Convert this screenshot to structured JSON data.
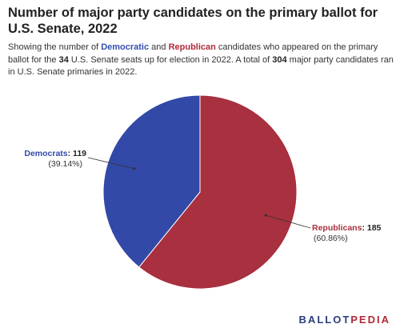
{
  "title": "Number of major party candidates on the primary ballot for U.S. Senate, 2022",
  "subtitle": {
    "part1": "Showing the number of ",
    "dem_word": "Democratic",
    "part2": " and ",
    "rep_word": "Republican",
    "part3": " candidates who appeared on the primary ballot for the ",
    "seats": "34",
    "part4": " U.S. Senate seats up for election in 2022. A total of ",
    "total": "304",
    "part5": " major party candidates ran in U.S. Senate primaries in 2022."
  },
  "logo": {
    "part1": "BALLOT",
    "part2": "PEDIA"
  },
  "chart_data": {
    "type": "pie",
    "title": "Number of major party candidates on the primary ballot for U.S. Senate, 2022",
    "slices": [
      {
        "name": "Republicans",
        "value": 185,
        "percent_label": "(60.86%)",
        "color": "#a8303f"
      },
      {
        "name": "Democrats",
        "value": 119,
        "percent_label": "(39.14%)",
        "color": "#3349a8"
      }
    ],
    "start": "12 o'clock",
    "direction": "clockwise"
  }
}
